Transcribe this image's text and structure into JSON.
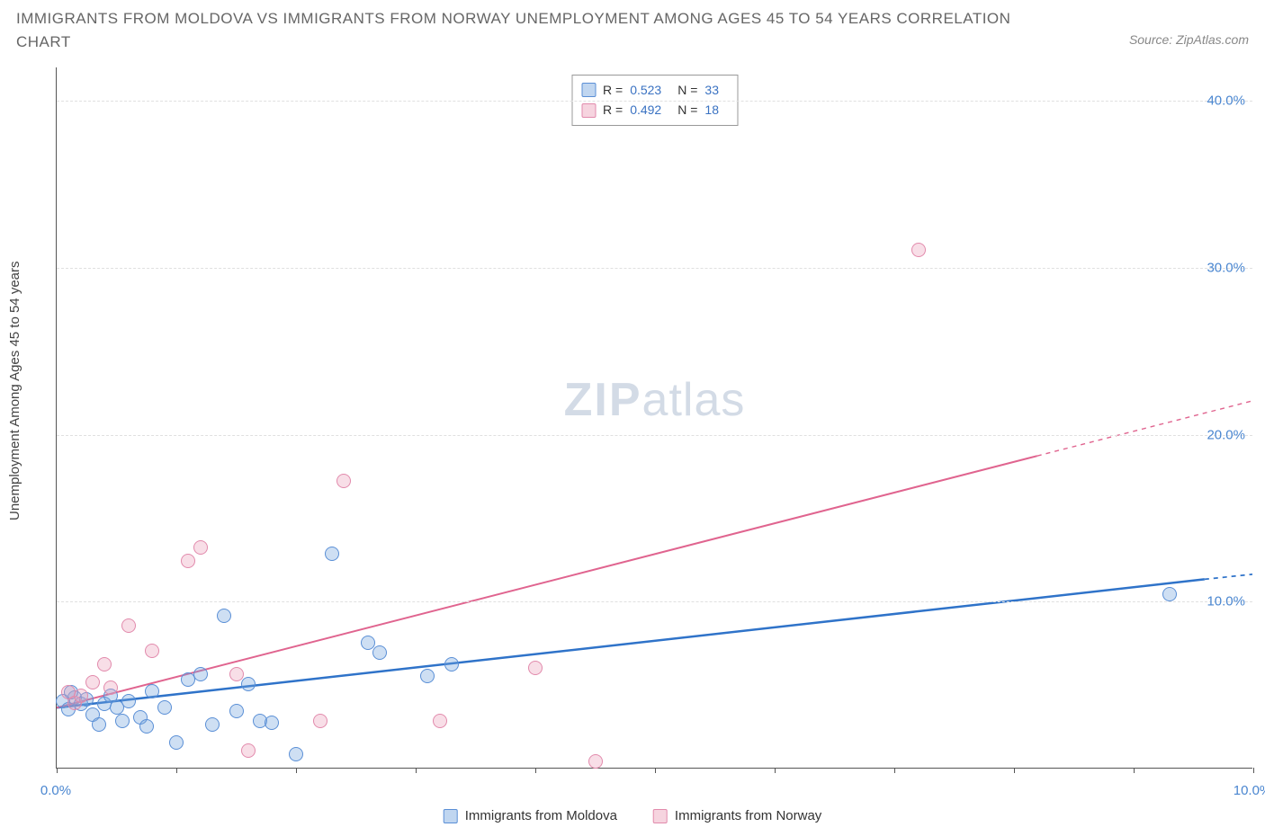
{
  "title": "IMMIGRANTS FROM MOLDOVA VS IMMIGRANTS FROM NORWAY UNEMPLOYMENT AMONG AGES 45 TO 54 YEARS CORRELATION CHART",
  "source_label": "Source: ZipAtlas.com",
  "watermark_main": "ZIP",
  "watermark_sub": "atlas",
  "chart": {
    "type": "scatter",
    "y_axis_label": "Unemployment Among Ages 45 to 54 years",
    "xlim": [
      0.0,
      10.0
    ],
    "ylim": [
      0.0,
      42.0
    ],
    "x_ticks": [
      0.0,
      1.0,
      2.0,
      3.0,
      4.0,
      5.0,
      6.0,
      7.0,
      8.0,
      9.0,
      10.0
    ],
    "x_tick_labels": {
      "0": "0.0%",
      "10": "10.0%"
    },
    "y_ticks": [
      10.0,
      20.0,
      30.0,
      40.0
    ],
    "y_tick_labels": [
      "10.0%",
      "20.0%",
      "30.0%",
      "40.0%"
    ],
    "grid_color": "#e0e0e0",
    "background_color": "#ffffff",
    "axis_color": "#555555",
    "tick_label_color": "#4a86d0",
    "series": [
      {
        "id": "moldova",
        "label": "Immigrants from Moldova",
        "marker_fill": "rgba(115,163,222,0.35)",
        "marker_stroke": "#5a8fd6",
        "marker_radius": 8,
        "line_color": "#2f73c9",
        "line_width": 2.5,
        "trend_start": [
          0.0,
          3.6
        ],
        "trend_end_solid": [
          9.6,
          11.3
        ],
        "trend_end_dashed": [
          10.0,
          11.6
        ],
        "stats": {
          "R": "0.523",
          "N": "33"
        },
        "points": [
          [
            0.05,
            4.0
          ],
          [
            0.1,
            3.5
          ],
          [
            0.15,
            4.2
          ],
          [
            0.2,
            3.8
          ],
          [
            0.25,
            4.1
          ],
          [
            0.3,
            3.2
          ],
          [
            0.35,
            2.6
          ],
          [
            0.4,
            3.8
          ],
          [
            0.45,
            4.3
          ],
          [
            0.5,
            3.6
          ],
          [
            0.55,
            2.8
          ],
          [
            0.6,
            4.0
          ],
          [
            0.7,
            3.0
          ],
          [
            0.75,
            2.5
          ],
          [
            0.8,
            4.6
          ],
          [
            0.9,
            3.6
          ],
          [
            1.0,
            1.5
          ],
          [
            1.1,
            5.3
          ],
          [
            1.2,
            5.6
          ],
          [
            1.3,
            2.6
          ],
          [
            1.4,
            9.1
          ],
          [
            1.5,
            3.4
          ],
          [
            1.6,
            5.0
          ],
          [
            1.7,
            2.8
          ],
          [
            1.8,
            2.7
          ],
          [
            2.0,
            0.8
          ],
          [
            2.3,
            12.8
          ],
          [
            2.6,
            7.5
          ],
          [
            2.7,
            6.9
          ],
          [
            3.1,
            5.5
          ],
          [
            3.3,
            6.2
          ],
          [
            9.3,
            10.4
          ],
          [
            0.12,
            4.5
          ]
        ]
      },
      {
        "id": "norway",
        "label": "Immigrants from Norway",
        "marker_fill": "rgba(236,160,185,0.35)",
        "marker_stroke": "#e28aac",
        "marker_radius": 8,
        "line_color": "#e0648f",
        "line_width": 2,
        "trend_start": [
          0.0,
          3.6
        ],
        "trend_end_solid": [
          8.2,
          18.7
        ],
        "trend_end_dashed": [
          10.0,
          22.0
        ],
        "stats": {
          "R": "0.492",
          "N": "18"
        },
        "points": [
          [
            0.1,
            4.5
          ],
          [
            0.15,
            3.9
          ],
          [
            0.2,
            4.3
          ],
          [
            0.3,
            5.1
          ],
          [
            0.4,
            6.2
          ],
          [
            0.45,
            4.8
          ],
          [
            0.6,
            8.5
          ],
          [
            0.8,
            7.0
          ],
          [
            1.1,
            12.4
          ],
          [
            1.2,
            13.2
          ],
          [
            1.5,
            5.6
          ],
          [
            1.6,
            1.0
          ],
          [
            2.2,
            2.8
          ],
          [
            2.4,
            17.2
          ],
          [
            3.2,
            2.8
          ],
          [
            4.0,
            6.0
          ],
          [
            4.5,
            0.4
          ],
          [
            7.2,
            31.0
          ]
        ]
      }
    ]
  },
  "stats_legend": {
    "rows": [
      {
        "swatch_fill": "rgba(115,163,222,0.45)",
        "swatch_border": "#5a8fd6",
        "R_label": "R =",
        "R_val": "0.523",
        "N_label": "N =",
        "N_val": "33"
      },
      {
        "swatch_fill": "rgba(236,160,185,0.45)",
        "swatch_border": "#e28aac",
        "R_label": "R =",
        "R_val": "0.492",
        "N_label": "N =",
        "N_val": "18"
      }
    ]
  },
  "bottom_legend": [
    {
      "swatch_fill": "rgba(115,163,222,0.45)",
      "swatch_border": "#5a8fd6",
      "label": "Immigrants from Moldova"
    },
    {
      "swatch_fill": "rgba(236,160,185,0.45)",
      "swatch_border": "#e28aac",
      "label": "Immigrants from Norway"
    }
  ]
}
